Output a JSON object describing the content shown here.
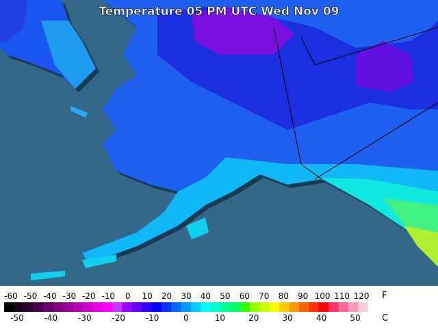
{
  "title": "Temperature 05 PM UTC Wed Nov 09",
  "legend": {
    "fahrenheit_unit": "F",
    "celsius_unit": "C",
    "fahrenheit_ticks": [
      -60,
      -50,
      -40,
      -30,
      -20,
      -10,
      0,
      10,
      20,
      30,
      40,
      50,
      60,
      70,
      80,
      90,
      100,
      110,
      120
    ],
    "celsius_ticks": [
      -50,
      -40,
      -30,
      -20,
      -10,
      0,
      10,
      20,
      30,
      40,
      50
    ],
    "colors": [
      "#000000",
      "#1a001a",
      "#330033",
      "#4d004d",
      "#660066",
      "#800080",
      "#990099",
      "#b300b3",
      "#cc00cc",
      "#e600e6",
      "#ff00ff",
      "#cc33ff",
      "#9900ff",
      "#6600ff",
      "#3300ff",
      "#0000ff",
      "#0033ff",
      "#0066ff",
      "#0099ff",
      "#00ccff",
      "#00ffff",
      "#00ffcc",
      "#00ff99",
      "#00ff66",
      "#33ff00",
      "#99ff00",
      "#ccff00",
      "#ffff00",
      "#ffcc00",
      "#ff9900",
      "#ff6600",
      "#ff3300",
      "#ff0000",
      "#ff3366",
      "#ff6699",
      "#ff99bb",
      "#ffccdd",
      "#ffffff"
    ]
  }
}
